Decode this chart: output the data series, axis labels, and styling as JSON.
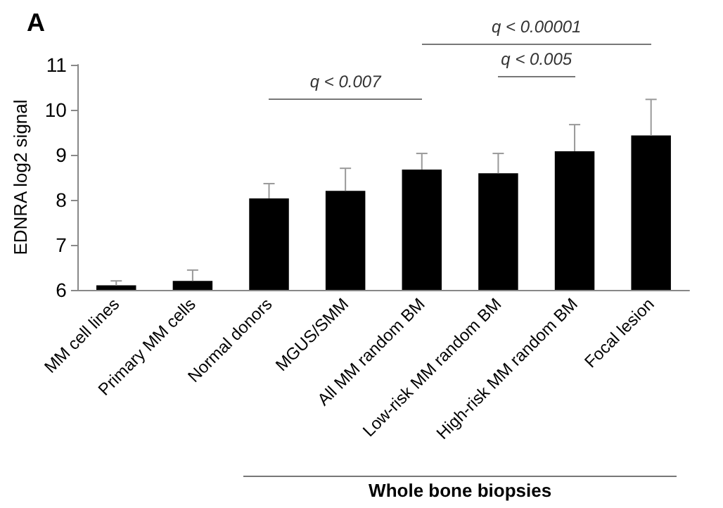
{
  "chart_data": {
    "type": "bar",
    "title": "A",
    "ylabel": "EDNRA log2 signal",
    "xlabel": "Whole bone biopsies",
    "categories": [
      "MM cell lines",
      "Primary MM cells",
      "Normal donors",
      "MGUS/SMM",
      "All MM random BM",
      "Low-risk MM random BM",
      "High-risk MM random BM",
      "Focal lesion"
    ],
    "values": [
      6.1,
      6.2,
      8.03,
      8.2,
      8.67,
      8.59,
      9.08,
      9.43
    ],
    "errors": [
      [
        6.1,
        6.2
      ],
      [
        6.2,
        6.44
      ],
      [
        8.03,
        8.36
      ],
      [
        8.2,
        8.7
      ],
      [
        8.67,
        9.03
      ],
      [
        8.59,
        9.03
      ],
      [
        9.08,
        9.67
      ],
      [
        9.43,
        10.23
      ]
    ],
    "color": "#000000",
    "ylim": [
      6,
      11
    ],
    "yticks": [
      6,
      7,
      8,
      9,
      10,
      11
    ],
    "grid": false,
    "annotations": [
      "q < 0.007",
      "q < 0.005",
      "q < 0.00001"
    ]
  }
}
